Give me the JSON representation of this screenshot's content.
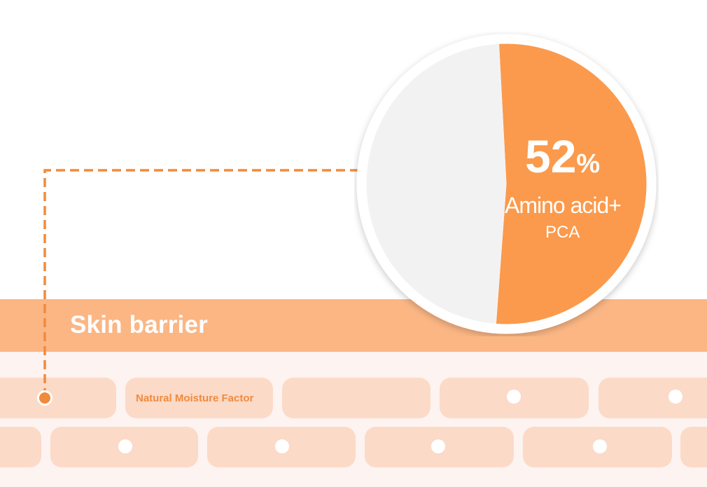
{
  "barrier": {
    "label": "Skin barrier"
  },
  "cells": {
    "nmf_label": "Natural Moisture Factor"
  },
  "chart_data": {
    "type": "pie",
    "slices": [
      {
        "label": "Amino acid+ PCA",
        "value": 52,
        "color": "#fb9a4c"
      },
      {
        "label": "",
        "value": 48,
        "color": "#f3f2f3"
      }
    ],
    "value_text": "52",
    "value_unit": "%",
    "label_line1": "Amino acid+",
    "label_line2": "PCA"
  },
  "colors": {
    "accent": "#fb9a4c",
    "barrier": "#fbb684",
    "cell": "#fbdac8",
    "connector": "#f28a3c",
    "pie_remainder": "#f3f2f3"
  }
}
